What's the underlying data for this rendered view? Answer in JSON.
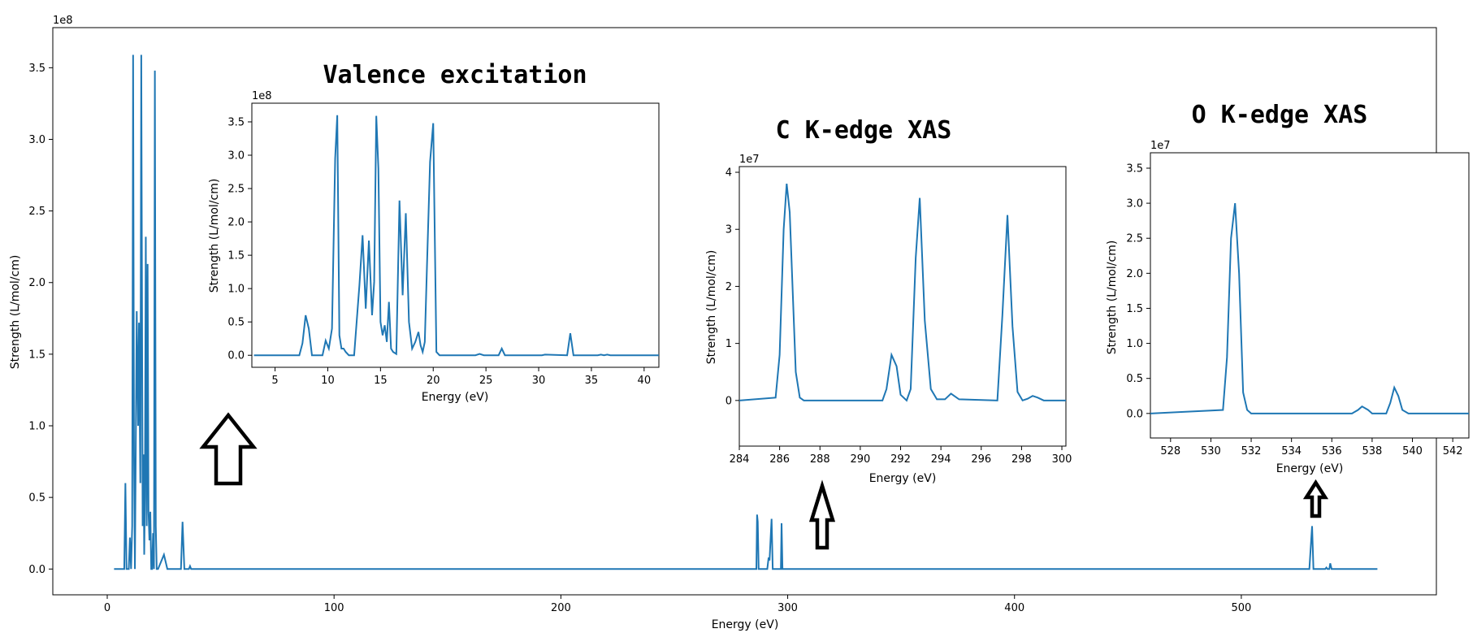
{
  "chart_data": [
    {
      "id": "main",
      "type": "line",
      "title": "",
      "xlabel": "Energy (eV)",
      "ylabel": "Strength (L/mol/cm)",
      "y_offset_label": "1e8",
      "y_scale": 100000000,
      "xlim": [
        -24,
        586
      ],
      "ylim": [
        -0.18,
        3.78
      ],
      "xticks": [
        0,
        100,
        200,
        300,
        400,
        500
      ],
      "yticks": [
        0.0,
        0.5,
        1.0,
        1.5,
        2.0,
        2.5,
        3.0,
        3.5
      ],
      "ytick_labels": [
        "0.0",
        "0.5",
        "1.0",
        "1.5",
        "2.0",
        "2.5",
        "3.0",
        "3.5"
      ],
      "color": "#1f77b4",
      "series": [
        {
          "x": [
            3,
            7.5,
            8,
            8.5,
            9.5,
            10,
            10.5,
            11,
            11.4,
            11.8,
            12.2,
            13,
            13.6,
            14,
            14.3,
            14.6,
            15,
            15.3,
            15.6,
            16,
            16.3,
            16.6,
            17,
            17.4,
            17.8,
            18.2,
            18.6,
            19,
            19.4,
            19.8,
            20.2,
            20.6,
            21,
            21.4,
            21.8,
            22.4,
            25,
            26.5,
            28,
            32.5,
            33.2,
            34,
            36,
            36.5,
            37,
            40,
            284,
            286.2,
            286.5,
            286.8,
            287.2,
            291,
            291.6,
            292,
            292.9,
            293.4,
            294,
            297,
            297.3,
            297.7,
            298.5,
            299,
            530,
            531.2,
            531.8,
            537,
            537.5,
            538,
            538.8,
            539.2,
            539.8,
            560
          ],
          "y": [
            0,
            0,
            0.6,
            0,
            0,
            0.22,
            0,
            0.3,
            3.59,
            0.8,
            0,
            1.8,
            1.0,
            1.72,
            1.1,
            0.6,
            3.59,
            2.0,
            0.3,
            0.8,
            0.1,
            0.5,
            2.32,
            0.3,
            2.13,
            0.4,
            0.2,
            0.4,
            0,
            0,
            0.25,
            0,
            3.48,
            0.3,
            0,
            0,
            0.1,
            0,
            0,
            0,
            0.33,
            0,
            0,
            0.02,
            0,
            0,
            0,
            0,
            0.38,
            0.33,
            0,
            0,
            0.08,
            0.06,
            0.35,
            0,
            0,
            0,
            0.32,
            0,
            0,
            0,
            0,
            0.3,
            0,
            0,
            0.01,
            0,
            0,
            0.04,
            0,
            0
          ]
        }
      ]
    },
    {
      "id": "valence",
      "type": "line",
      "title": "Valence excitation",
      "xlabel": "Energy (eV)",
      "ylabel": "Strength (L/mol/cm)",
      "y_offset_label": "1e8",
      "xlim": [
        2.8,
        41.4
      ],
      "ylim": [
        -0.18,
        3.78
      ],
      "xticks": [
        5,
        10,
        15,
        20,
        25,
        30,
        35,
        40
      ],
      "yticks": [
        0.0,
        0.5,
        1.0,
        1.5,
        2.0,
        2.5,
        3.0,
        3.5
      ],
      "ytick_labels": [
        "0.0",
        "0.5",
        "1.0",
        "1.5",
        "2.0",
        "2.5",
        "3.0",
        "3.5"
      ],
      "color": "#1f77b4",
      "series": [
        {
          "x": [
            3,
            7.3,
            7.6,
            7.9,
            8.2,
            8.5,
            9.5,
            9.8,
            10.1,
            10.4,
            10.7,
            10.9,
            11.1,
            11.3,
            11.5,
            11.7,
            12.0,
            12.5,
            13.0,
            13.3,
            13.6,
            13.9,
            14.2,
            14.4,
            14.6,
            14.8,
            15.0,
            15.2,
            15.4,
            15.6,
            15.8,
            16.0,
            16.2,
            16.5,
            16.8,
            17.1,
            17.4,
            17.7,
            18.0,
            18.3,
            18.6,
            18.8,
            19.0,
            19.2,
            19.4,
            19.7,
            20.0,
            20.3,
            20.6,
            20.9,
            21.2,
            21.4,
            24,
            24.4,
            24.8,
            26.2,
            26.5,
            26.8,
            30.3,
            30.6,
            32.7,
            33.0,
            33.3,
            35.6,
            35.9,
            36.2,
            36.5,
            36.8,
            41.4
          ],
          "y": [
            0,
            0,
            0.18,
            0.6,
            0.4,
            0,
            0,
            0.22,
            0.1,
            0.4,
            2.95,
            3.6,
            0.3,
            0.1,
            0.1,
            0.05,
            0,
            0,
            1.05,
            1.8,
            0.7,
            1.72,
            0.6,
            1.1,
            3.59,
            2.8,
            0.5,
            0.3,
            0.45,
            0.2,
            0.8,
            0.1,
            0.05,
            0.02,
            2.32,
            0.9,
            2.13,
            0.5,
            0.1,
            0.2,
            0.35,
            0.15,
            0.05,
            0.2,
            1.3,
            2.9,
            3.48,
            0.05,
            0,
            0,
            0,
            0,
            0,
            0.02,
            0,
            0,
            0.1,
            0,
            0,
            0.01,
            0,
            0.33,
            0,
            0,
            0.01,
            0,
            0.01,
            0,
            0
          ]
        }
      ]
    },
    {
      "id": "c-kedge",
      "type": "line",
      "title": "C K-edge XAS",
      "xlabel": "Energy (eV)",
      "ylabel": "Strength (L/mol/cm)",
      "y_offset_label": "1e7",
      "xlim": [
        284,
        300.2
      ],
      "ylim": [
        -0.8,
        4.1
      ],
      "xticks": [
        284,
        286,
        288,
        290,
        292,
        294,
        296,
        298,
        300
      ],
      "yticks": [
        0,
        1,
        2,
        3,
        4
      ],
      "ytick_labels": [
        "0",
        "1",
        "2",
        "3",
        "4"
      ],
      "color": "#1f77b4",
      "series": [
        {
          "x": [
            284,
            285.8,
            286.0,
            286.2,
            286.35,
            286.5,
            286.8,
            287.0,
            287.2,
            291.1,
            291.3,
            291.55,
            291.8,
            292.0,
            292.3,
            292.5,
            292.75,
            292.95,
            293.2,
            293.5,
            293.8,
            294.2,
            294.5,
            294.9,
            296.8,
            297.05,
            297.3,
            297.55,
            297.8,
            298.05,
            298.3,
            298.55,
            298.8,
            299.1,
            300.2
          ],
          "y": [
            0,
            0.05,
            0.8,
            3.0,
            3.8,
            3.3,
            0.5,
            0.05,
            0,
            0,
            0.2,
            0.8,
            0.6,
            0.1,
            0.0,
            0.2,
            2.5,
            3.55,
            1.4,
            0.2,
            0.02,
            0.02,
            0.12,
            0.02,
            0,
            1.5,
            3.25,
            1.3,
            0.15,
            0.0,
            0.03,
            0.08,
            0.05,
            0.0,
            0
          ]
        }
      ]
    },
    {
      "id": "o-kedge",
      "type": "line",
      "title": "O K-edge XAS",
      "xlabel": "Energy (eV)",
      "ylabel": "Strength (L/mol/cm)",
      "y_offset_label": "1e7",
      "xlim": [
        527,
        542.8
      ],
      "ylim": [
        -0.35,
        3.72
      ],
      "xticks": [
        528,
        530,
        532,
        534,
        536,
        538,
        540,
        542
      ],
      "yticks": [
        0.0,
        0.5,
        1.0,
        1.5,
        2.0,
        2.5,
        3.0,
        3.5
      ],
      "ytick_labels": [
        "0.0",
        "0.5",
        "1.0",
        "1.5",
        "2.0",
        "2.5",
        "3.0",
        "3.5"
      ],
      "color": "#1f77b4",
      "series": [
        {
          "x": [
            527,
            530.6,
            530.8,
            531.0,
            531.2,
            531.4,
            531.6,
            531.8,
            532.0,
            537.0,
            537.3,
            537.5,
            537.8,
            538.0,
            538.7,
            538.9,
            539.1,
            539.3,
            539.5,
            539.8,
            542.8
          ],
          "y": [
            0,
            0.05,
            0.8,
            2.5,
            3.0,
            2.0,
            0.3,
            0.05,
            0,
            0,
            0.05,
            0.1,
            0.05,
            0,
            0,
            0.15,
            0.37,
            0.25,
            0.05,
            0,
            0
          ]
        }
      ]
    }
  ]
}
